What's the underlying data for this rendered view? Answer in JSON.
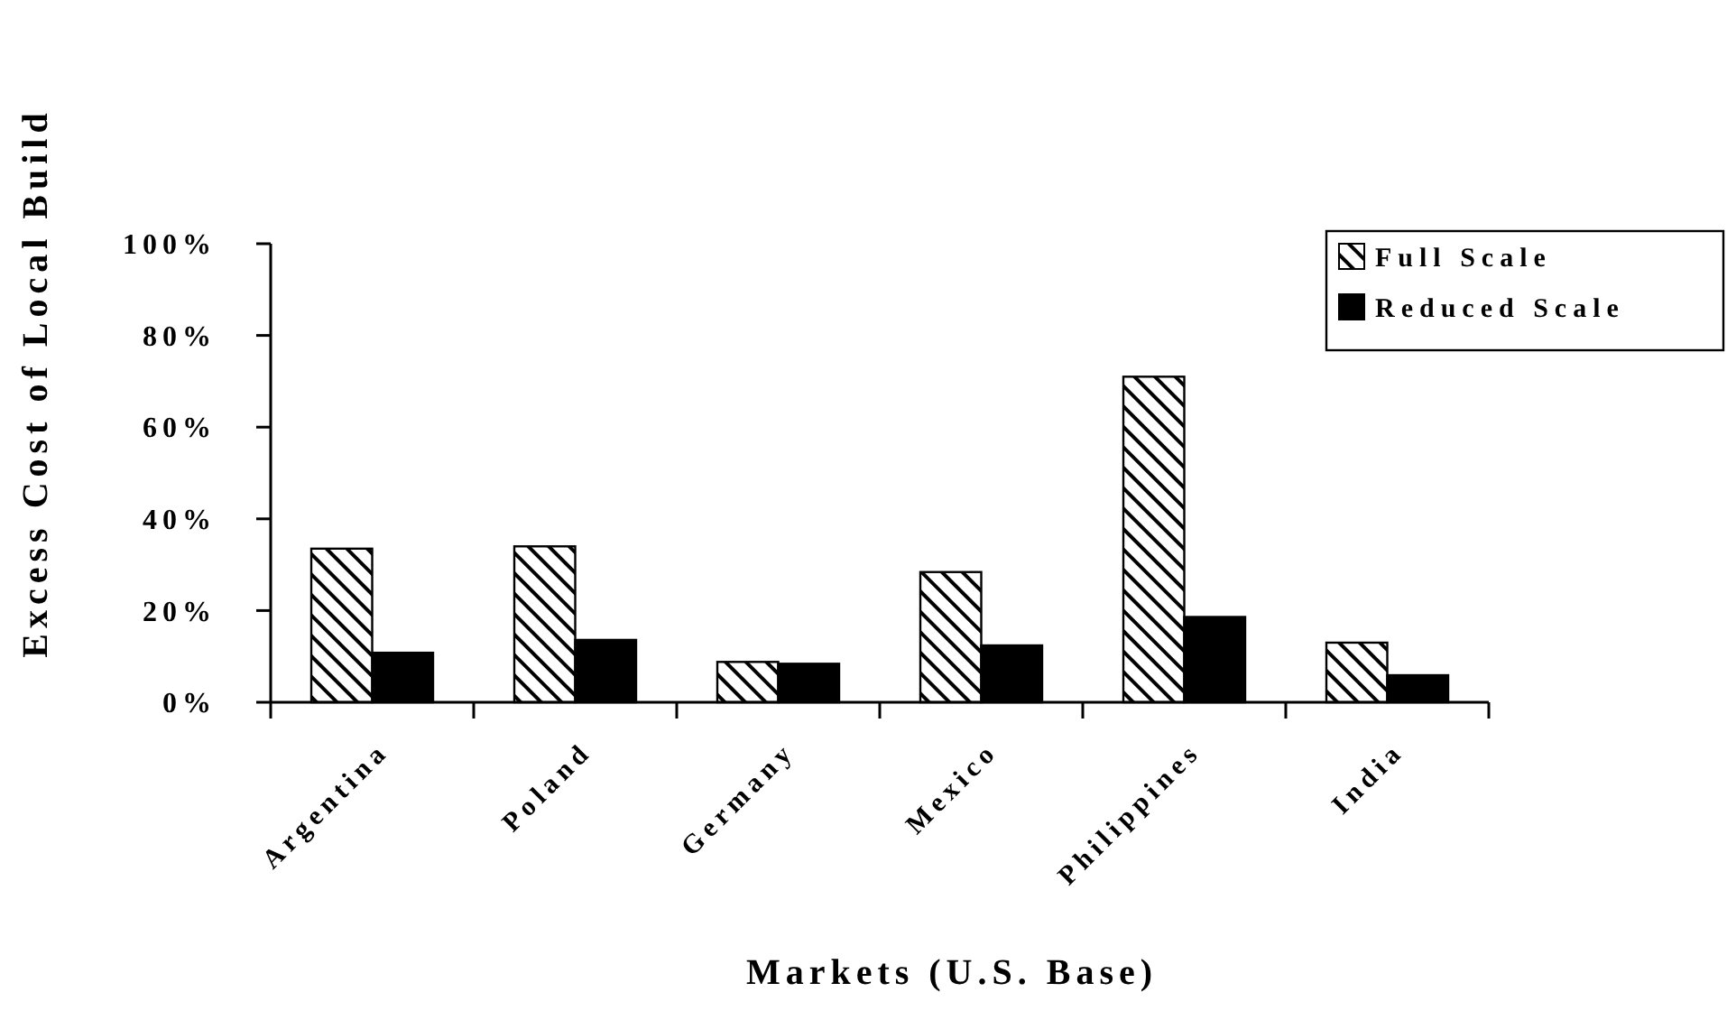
{
  "chart_data": {
    "type": "bar",
    "xlabel": "Markets (U.S. Base)",
    "ylabel": "Excess Cost of Local Build",
    "categories": [
      "Argentina",
      "Poland",
      "Germany",
      "Mexico",
      "Philippines",
      "India"
    ],
    "series": [
      {
        "name": "Full Scale",
        "color": "#000000",
        "values": [
          33.5,
          34,
          8.8,
          28.4,
          71,
          13
        ]
      },
      {
        "name": "Reduced Scale",
        "color": "#000000",
        "values": [
          10.8,
          13.6,
          8.4,
          12.4,
          18.6,
          5.9
        ]
      }
    ],
    "ylim": [
      0,
      100
    ],
    "yticks": [
      {
        "value": 0,
        "label": "0%"
      },
      {
        "value": 20,
        "label": "20%"
      },
      {
        "value": 40,
        "label": "40%"
      },
      {
        "value": 60,
        "label": "60%"
      },
      {
        "value": 80,
        "label": "80%"
      },
      {
        "value": 100,
        "label": "100%"
      }
    ],
    "grid": false,
    "legend": "top right"
  }
}
